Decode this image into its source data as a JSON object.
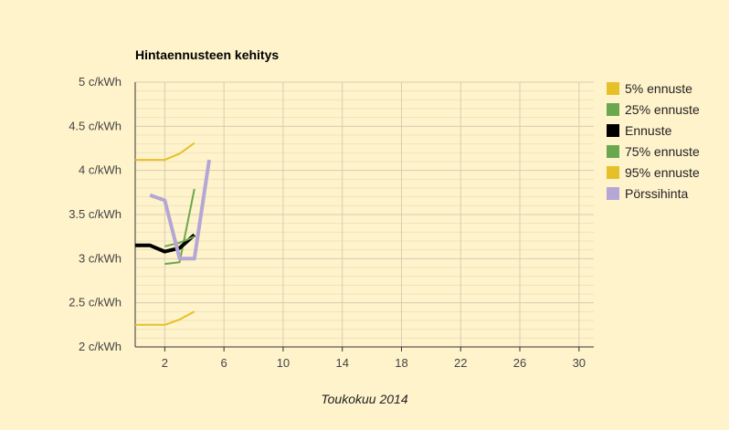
{
  "chart_data": {
    "type": "line",
    "title": "Hintaennusteen kehitys",
    "xlabel": "Toukokuu 2014",
    "ylabel": "",
    "xlim": [
      0,
      31
    ],
    "ylim": [
      2,
      5
    ],
    "x_ticks": [
      2,
      6,
      10,
      14,
      18,
      22,
      26,
      30
    ],
    "y_ticks": [
      {
        "value": 2,
        "label": "2 c/kWh"
      },
      {
        "value": 2.5,
        "label": "2.5 c/kWh"
      },
      {
        "value": 3,
        "label": "3 c/kWh"
      },
      {
        "value": 3.5,
        "label": "3.5 c/kWh"
      },
      {
        "value": 4,
        "label": "4 c/kWh"
      },
      {
        "value": 4.5,
        "label": "4.5 c/kWh"
      },
      {
        "value": 5,
        "label": "5 c/kWh"
      }
    ],
    "grid": true,
    "legend_position": "right",
    "series": [
      {
        "name": "5% ennuste",
        "color": "#e6c029",
        "width": 2,
        "points": [
          [
            0,
            4.12
          ],
          [
            2,
            4.12
          ],
          [
            3,
            4.19
          ],
          [
            4,
            4.31
          ]
        ]
      },
      {
        "name": "25% ennuste",
        "color": "#6aa84f",
        "width": 2,
        "points": [
          [
            2,
            2.94
          ],
          [
            3,
            2.96
          ],
          [
            4,
            3.79
          ]
        ]
      },
      {
        "name": "Ennuste",
        "color": "#000000",
        "width": 4,
        "points": [
          [
            0,
            3.15
          ],
          [
            1,
            3.15
          ],
          [
            2,
            3.08
          ],
          [
            3,
            3.12
          ],
          [
            4,
            3.27
          ]
        ]
      },
      {
        "name": "75% ennuste",
        "color": "#6aa84f",
        "width": 2,
        "points": [
          [
            2,
            3.14
          ],
          [
            3,
            3.18
          ],
          [
            4,
            3.25
          ]
        ]
      },
      {
        "name": "95% ennuste",
        "color": "#e6c029",
        "width": 2,
        "points": [
          [
            0,
            2.25
          ],
          [
            2,
            2.25
          ],
          [
            3,
            2.31
          ],
          [
            4,
            2.4
          ]
        ]
      },
      {
        "name": "Pörssihinta",
        "color": "#b4a7d6",
        "width": 4,
        "points": [
          [
            1,
            3.72
          ],
          [
            2,
            3.66
          ],
          [
            3,
            3.0
          ],
          [
            4,
            3.0
          ],
          [
            5,
            4.12
          ]
        ]
      }
    ]
  }
}
